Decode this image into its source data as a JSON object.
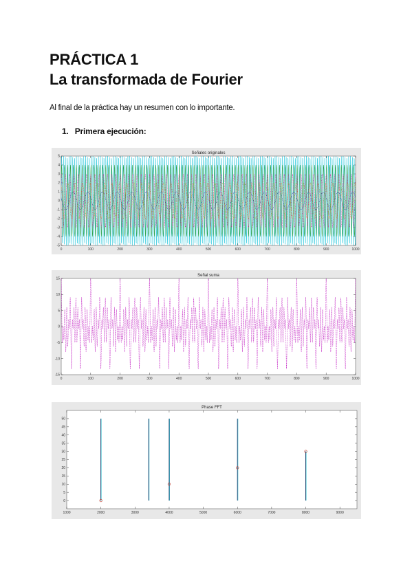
{
  "document": {
    "title_line1": "PRÁCTICA 1",
    "title_line2": "La transformada de Fourier",
    "intro": "Al final de la práctica hay un resumen con lo importante.",
    "section_number": "1.",
    "section_title": "Primera ejecución:"
  },
  "chart_data": [
    {
      "type": "line",
      "title": "Señales originales",
      "xlabel": "",
      "ylabel": "",
      "xlim": [
        0,
        1000
      ],
      "ylim": [
        -5,
        5
      ],
      "x_ticks": [
        0,
        100,
        200,
        300,
        400,
        500,
        600,
        700,
        800,
        900,
        1000
      ],
      "y_ticks": [
        5,
        4,
        3,
        2,
        1,
        0,
        -1,
        -2,
        -3,
        -4,
        -5
      ],
      "series": [
        {
          "color": "#00bcd4",
          "amplitude": 5,
          "cycles": 160
        },
        {
          "color": "#2e9e44",
          "amplitude": 4,
          "cycles": 100
        },
        {
          "color": "#d81b9b",
          "amplitude": 3,
          "cycles": 70
        },
        {
          "color": "#d87a1b",
          "amplitude": 2,
          "cycles": 40
        },
        {
          "color": "#1a2a8a",
          "amplitude": 1,
          "cycles": 20
        }
      ],
      "grid": false
    },
    {
      "type": "line",
      "title": "Señal suma",
      "xlabel": "",
      "ylabel": "",
      "xlim": [
        0,
        1000
      ],
      "ylim": [
        -15,
        15
      ],
      "x_ticks": [
        0,
        100,
        200,
        300,
        400,
        500,
        600,
        700,
        800,
        900,
        1000
      ],
      "y_ticks": [
        15,
        10,
        5,
        0,
        -5,
        -10,
        -15
      ],
      "series": [
        {
          "color": "#c21fc2",
          "components": [
            {
              "amplitude": 5,
              "cycles": 160
            },
            {
              "amplitude": 4,
              "cycles": 100
            },
            {
              "amplitude": 3,
              "cycles": 70
            },
            {
              "amplitude": 2,
              "cycles": 40
            },
            {
              "amplitude": 1,
              "cycles": 20
            }
          ]
        }
      ],
      "grid": false
    },
    {
      "type": "line",
      "title": "Phase FFT",
      "xlabel": "",
      "ylabel": "",
      "xlim": [
        1000,
        9500
      ],
      "ylim": [
        -5,
        55
      ],
      "x_ticks": [
        1000,
        2000,
        3000,
        4000,
        5000,
        6000,
        7000,
        8000,
        9000
      ],
      "y_ticks": [
        50,
        45,
        40,
        35,
        30,
        25,
        20,
        15,
        10,
        5,
        0
      ],
      "series": [
        {
          "color": "#16406e",
          "spikes": [
            {
              "x": 2000,
              "y": 50
            },
            {
              "x": 3400,
              "y": 50
            },
            {
              "x": 4000,
              "y": 50
            },
            {
              "x": 6000,
              "y": 50
            },
            {
              "x": 8000,
              "y": 30
            }
          ]
        }
      ],
      "markers": [
        {
          "x": 2000,
          "y": 0,
          "color": "#c0392b"
        },
        {
          "x": 4000,
          "y": 10,
          "color": "#c0392b"
        },
        {
          "x": 6000,
          "y": 20,
          "color": "#c0392b"
        },
        {
          "x": 8000,
          "y": 30,
          "color": "#c0392b"
        }
      ],
      "grid": false
    }
  ]
}
